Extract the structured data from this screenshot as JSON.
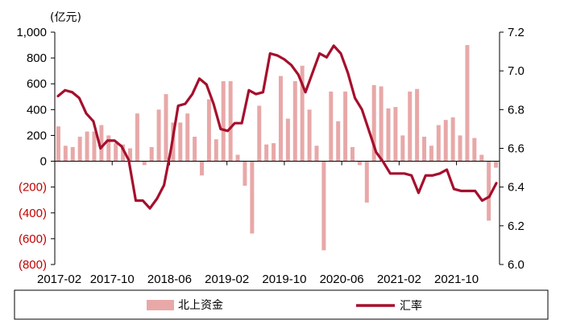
{
  "chart_data": {
    "type": "bar+line",
    "unit_label": "(亿元)",
    "x_tick_labels": [
      "2017-02",
      "2017-10",
      "2018-06",
      "2019-02",
      "2019-10",
      "2020-06",
      "2021-02",
      "2021-10"
    ],
    "y_left": {
      "min": -800,
      "max": 1000,
      "step": 200,
      "tick_labels": [
        "1,000",
        "800",
        "600",
        "400",
        "200",
        "0",
        "(200)",
        "(400)",
        "(600)",
        "(800)"
      ]
    },
    "y_right": {
      "min": 6.0,
      "max": 7.2,
      "step": 0.2,
      "tick_labels": [
        "7.2",
        "7.0",
        "6.8",
        "6.6",
        "6.4",
        "6.2",
        "6.0"
      ]
    },
    "series": [
      {
        "name": "北上资金",
        "type": "bar",
        "axis": "left",
        "color": "#e8a8a8",
        "values": [
          270,
          120,
          110,
          190,
          230,
          230,
          280,
          200,
          140,
          130,
          100,
          370,
          -30,
          110,
          400,
          520,
          300,
          300,
          370,
          190,
          -110,
          480,
          170,
          620,
          620,
          50,
          -190,
          -560,
          430,
          130,
          140,
          660,
          330,
          620,
          740,
          400,
          120,
          -690,
          540,
          310,
          540,
          110,
          -30,
          -320,
          590,
          580,
          410,
          420,
          200,
          540,
          560,
          190,
          120,
          280,
          320,
          340,
          200,
          900,
          180,
          50,
          -460,
          -50
        ]
      },
      {
        "name": "汇率",
        "type": "line",
        "axis": "right",
        "color": "#a50f2d",
        "values": [
          6.87,
          6.9,
          6.89,
          6.86,
          6.78,
          6.74,
          6.6,
          6.64,
          6.64,
          6.61,
          6.54,
          6.33,
          6.33,
          6.29,
          6.34,
          6.41,
          6.6,
          6.82,
          6.83,
          6.88,
          6.96,
          6.93,
          6.83,
          6.7,
          6.69,
          6.73,
          6.73,
          6.9,
          6.88,
          6.89,
          7.09,
          7.08,
          7.06,
          7.03,
          6.98,
          6.89,
          6.99,
          7.09,
          7.07,
          7.13,
          7.09,
          6.99,
          6.86,
          6.8,
          6.69,
          6.58,
          6.53,
          6.47,
          6.47,
          6.47,
          6.46,
          6.37,
          6.46,
          6.46,
          6.47,
          6.49,
          6.39,
          6.38,
          6.38,
          6.38,
          6.33,
          6.35,
          6.42
        ]
      }
    ],
    "legend": {
      "position": "bottom",
      "entries": [
        "北上资金",
        "汇率"
      ]
    }
  }
}
